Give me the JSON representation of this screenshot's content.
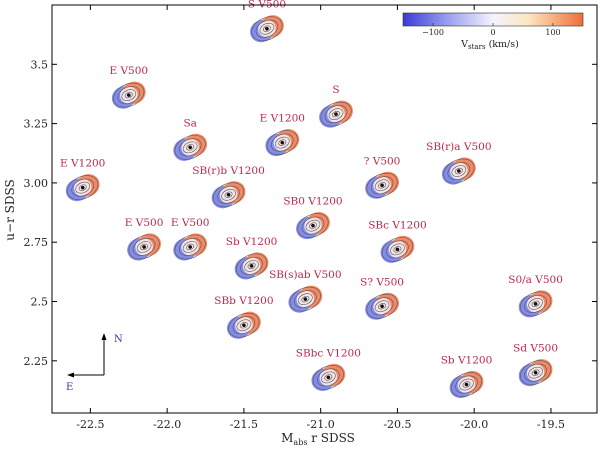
{
  "chart_data": {
    "type": "scatter",
    "title": "",
    "xlabel": "M_abs r SDSS",
    "ylabel": "u−r SDSS",
    "xlim": [
      -22.75,
      -19.2
    ],
    "ylim": [
      2.03,
      3.75
    ],
    "xticks": [
      "-22.5",
      "-22.0",
      "-21.5",
      "-21.0",
      "-20.5",
      "-20.0",
      "-19.5"
    ],
    "xtick_values": [
      -22.5,
      -22.0,
      -21.5,
      -21.0,
      -20.5,
      -20.0,
      -19.5
    ],
    "yticks": [
      "2.25",
      "2.5",
      "2.75",
      "3.00",
      "3.25",
      "3.5"
    ],
    "ytick_values": [
      2.25,
      2.5,
      2.75,
      3.0,
      3.25,
      3.5
    ],
    "colorbar": {
      "label_main": "V",
      "label_sub": "stars",
      "label_units": " (km/s)",
      "ticks": [
        "−100",
        "0",
        "100"
      ],
      "tick_values": [
        -100,
        0,
        100
      ],
      "range": [
        -150,
        150
      ],
      "colors": [
        "#3b3bd6",
        "#9aa0ee",
        "#f4f2ff",
        "#fbe6bf",
        "#f06d3a"
      ]
    },
    "galaxies": [
      {
        "label": "S V500",
        "x": -21.35,
        "y": 3.65
      },
      {
        "label": "E V500",
        "x": -22.25,
        "y": 3.37
      },
      {
        "label": "Sa",
        "x": -21.85,
        "y": 3.15
      },
      {
        "label": "E V1200",
        "x": -21.25,
        "y": 3.17
      },
      {
        "label": "S",
        "x": -20.9,
        "y": 3.29
      },
      {
        "label": "E V1200",
        "x": -22.55,
        "y": 2.98
      },
      {
        "label": "SB(r)b V1200",
        "x": -21.6,
        "y": 2.95
      },
      {
        "label": "? V500",
        "x": -20.6,
        "y": 2.99
      },
      {
        "label": "SB(r)a V500",
        "x": -20.1,
        "y": 3.05
      },
      {
        "label": "E V500",
        "x": -22.15,
        "y": 2.73
      },
      {
        "label": "E V500",
        "x": -21.85,
        "y": 2.73
      },
      {
        "label": "SB0 V1200",
        "x": -21.05,
        "y": 2.82
      },
      {
        "label": "Sb V1200",
        "x": -21.45,
        "y": 2.65
      },
      {
        "label": "SBc V1200",
        "x": -20.5,
        "y": 2.72
      },
      {
        "label": "SB(s)ab V500",
        "x": -21.1,
        "y": 2.51
      },
      {
        "label": "S? V500",
        "x": -20.6,
        "y": 2.48
      },
      {
        "label": "S0/a V500",
        "x": -19.6,
        "y": 2.49
      },
      {
        "label": "SBb V1200",
        "x": -21.5,
        "y": 2.4
      },
      {
        "label": "SBbc V1200",
        "x": -20.95,
        "y": 2.18
      },
      {
        "label": "Sb V1200",
        "x": -20.05,
        "y": 2.15
      },
      {
        "label": "Sd V500",
        "x": -19.6,
        "y": 2.2
      }
    ],
    "compass": {
      "north": "N",
      "east": "E"
    }
  }
}
